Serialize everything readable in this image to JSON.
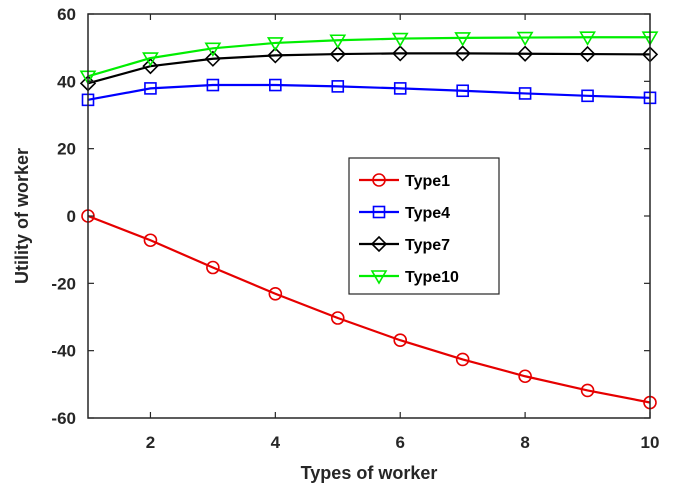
{
  "chart_data": {
    "type": "line",
    "title": "",
    "xlabel": "Types of worker",
    "ylabel": "Utility of worker",
    "xlim": [
      1,
      10
    ],
    "ylim": [
      -60,
      60
    ],
    "xticks": [
      2,
      4,
      6,
      8,
      10
    ],
    "yticks": [
      -60,
      -40,
      -20,
      0,
      20,
      40,
      60
    ],
    "grid": false,
    "legend_position": "center-right",
    "x": [
      1,
      2,
      3,
      4,
      5,
      6,
      7,
      8,
      9,
      10
    ],
    "series": [
      {
        "name": "Type1",
        "color": "#e60000",
        "marker": "circle",
        "values": [
          0,
          -7.2,
          -15.3,
          -23.1,
          -30.3,
          -36.9,
          -42.6,
          -47.6,
          -51.8,
          -55.4
        ]
      },
      {
        "name": "Type4",
        "color": "#0000ff",
        "marker": "square",
        "values": [
          34.5,
          37.9,
          38.9,
          38.9,
          38.5,
          37.9,
          37.2,
          36.4,
          35.7,
          35.1
        ]
      },
      {
        "name": "Type7",
        "color": "#000000",
        "marker": "diamond",
        "values": [
          39.4,
          44.5,
          46.7,
          47.7,
          48.1,
          48.3,
          48.3,
          48.2,
          48.1,
          48.0
        ]
      },
      {
        "name": "Type10",
        "color": "#00ee00",
        "marker": "triangle-down",
        "values": [
          41.5,
          46.9,
          49.8,
          51.4,
          52.2,
          52.7,
          52.9,
          53.0,
          53.1,
          53.1
        ]
      }
    ]
  }
}
